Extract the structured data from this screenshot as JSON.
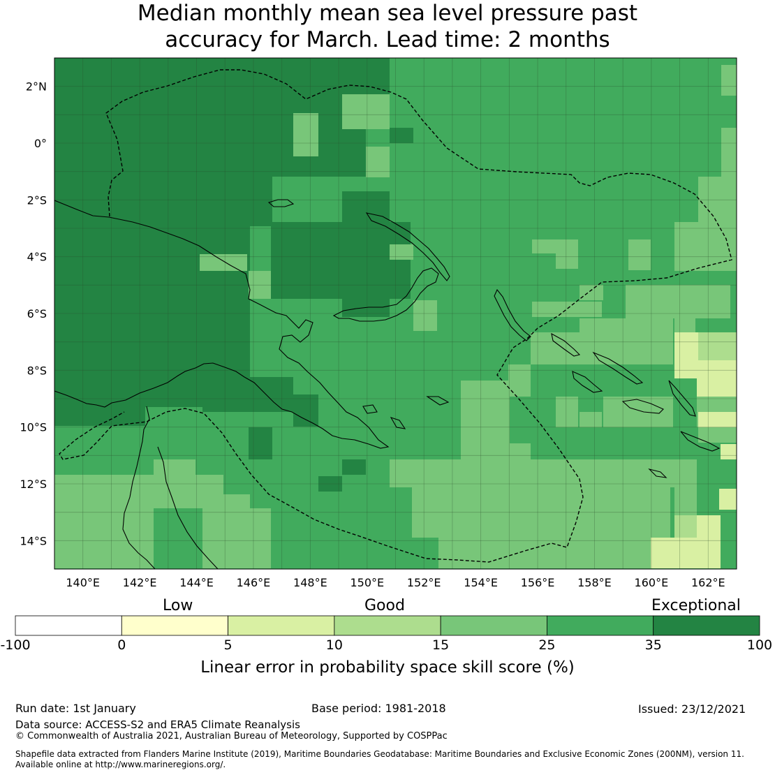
{
  "title": {
    "line1": "Median monthly mean sea level pressure past",
    "line2": "accuracy for March. Lead time: 2 months"
  },
  "map": {
    "lon_range": [
      139,
      163
    ],
    "lat_range": [
      -15,
      3
    ],
    "lon_ticks": [
      "140°E",
      "142°E",
      "144°E",
      "146°E",
      "148°E",
      "150°E",
      "152°E",
      "154°E",
      "156°E",
      "158°E",
      "160°E",
      "162°E"
    ],
    "lat_ticks": [
      "2°N",
      "0°",
      "2°S",
      "4°S",
      "6°S",
      "8°S",
      "10°S",
      "12°S",
      "14°S"
    ],
    "grid": true,
    "eez_boundary": "dashed",
    "category_colors": {
      "5-10": "#d9f0a3",
      "10-15": "#addd8e",
      "15-25": "#78c679",
      "25-35": "#41ab5d",
      "35-100": "#238443"
    }
  },
  "colorbar": {
    "category_labels": [
      "Low",
      "Good",
      "Exceptional"
    ],
    "tick_labels": [
      "-100",
      "0",
      "5",
      "10",
      "15",
      "25",
      "35",
      "100"
    ],
    "colors": [
      "#ffffff",
      "#ffffcc",
      "#d9f0a3",
      "#addd8e",
      "#78c679",
      "#41ab5d",
      "#238443"
    ],
    "axis_label": "Linear error in probability space skill score (%)"
  },
  "footer": {
    "run_date": "Run date: 1st January",
    "base_period": "Base period: 1981-2018",
    "issued": "Issued: 23/12/2021",
    "data_source": "Data source: ACCESS-S2 and ERA5 Climate Reanalysis",
    "copyright": "© Commonwealth of Australia 2021, Australian Bureau of Meteorology, Supported by COSPPac",
    "shapefile_line1": "Shapefile data extracted from Flanders Marine Institute (2019), Maritime Boundaries Geodatabase: Maritime Boundaries and Exclusive Economic Zones (200NM), version 11.",
    "shapefile_line2": "Available online at http://www.marineregions.org/."
  }
}
